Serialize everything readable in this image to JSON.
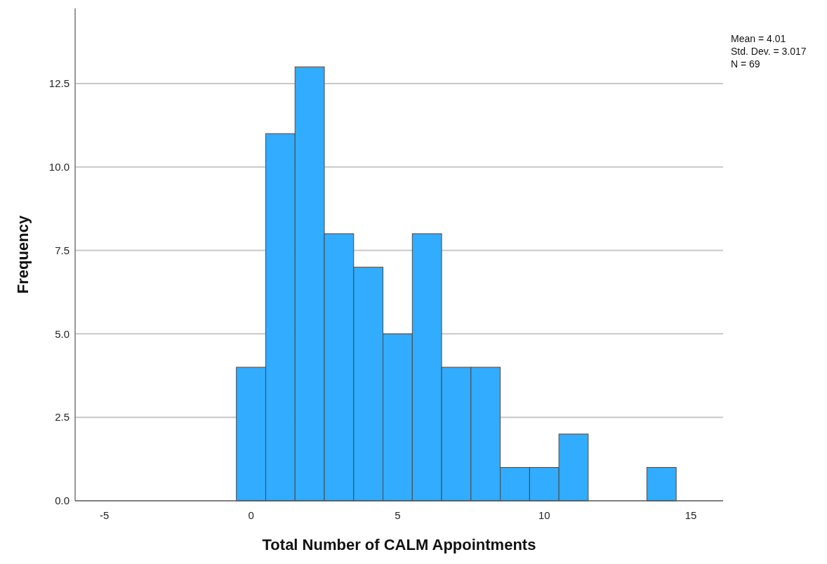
{
  "chart_data": {
    "type": "histogram",
    "xlabel": "Total Number of CALM Appointments",
    "ylabel": "Frequency",
    "bins": [
      -0.5,
      0.5,
      1.5,
      2.5,
      3.5,
      4.5,
      5.5,
      6.5,
      7.5,
      8.5,
      9.5,
      10.5,
      11.5,
      12.5,
      13.5,
      14.5
    ],
    "values": [
      4,
      11,
      13,
      8,
      7,
      5,
      8,
      4,
      4,
      1,
      1,
      2,
      0,
      0,
      1
    ],
    "color": "#31acfe",
    "xlim": [
      -6,
      16.1
    ],
    "xticks": [
      -5,
      0,
      5,
      10,
      15
    ],
    "ylim": [
      0,
      14.75
    ],
    "yticks": [
      {
        "value": 0,
        "label": "0.0"
      },
      {
        "value": 2.5,
        "label": "2.5"
      },
      {
        "value": 5,
        "label": "5.0"
      },
      {
        "value": 7.5,
        "label": "7.5"
      },
      {
        "value": 10,
        "label": "10.0"
      },
      {
        "value": 12.5,
        "label": "12.5"
      }
    ],
    "grid": "y",
    "annotations": [
      "Mean = 4.01",
      "Std. Dev. = 3.017",
      "N = 69"
    ]
  }
}
